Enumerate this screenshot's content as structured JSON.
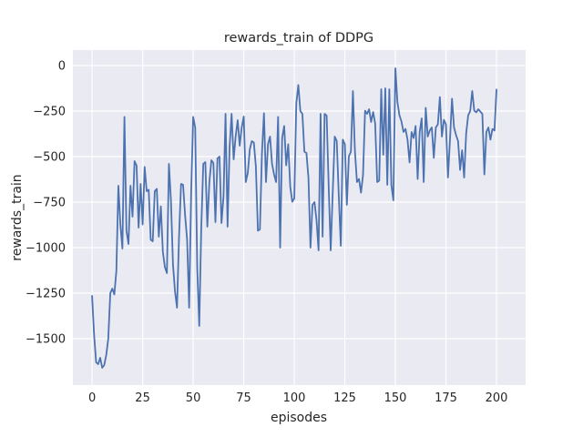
{
  "figure": {
    "title": "rewards_train of DDPG",
    "xlabel": "episodes",
    "ylabel": "rewards_train"
  },
  "style": {
    "figure_bg": "#ffffff",
    "axes_bg": "#eaeaf2",
    "grid_color": "#ffffff",
    "line_color": "#4c72b0",
    "text_color": "#262626"
  },
  "chart_data": {
    "type": "line",
    "title": "rewards_train of DDPG",
    "xlabel": "episodes",
    "ylabel": "rewards_train",
    "grid": true,
    "legend": null,
    "x_start": 0,
    "x_step": 1,
    "x_ticks": [
      0,
      25,
      50,
      75,
      100,
      125,
      150,
      175,
      200
    ],
    "y_ticks": [
      0,
      -250,
      -500,
      -750,
      -1000,
      -1250,
      -1500
    ],
    "xlim": [
      -9.5,
      214.4
    ],
    "ylim": [
      -1755,
      85
    ],
    "series": [
      {
        "name": "rewards_train",
        "color": "#4c72b0",
        "values": [
          -1265,
          -1480,
          -1630,
          -1640,
          -1605,
          -1660,
          -1645,
          -1590,
          -1500,
          -1250,
          -1225,
          -1257,
          -1130,
          -660,
          -875,
          -1005,
          -282,
          -907,
          -980,
          -660,
          -830,
          -525,
          -550,
          -890,
          -650,
          -873,
          -557,
          -690,
          -682,
          -957,
          -965,
          -690,
          -677,
          -940,
          -773,
          -1023,
          -1107,
          -1140,
          -540,
          -740,
          -1090,
          -1240,
          -1330,
          -940,
          -650,
          -655,
          -823,
          -957,
          -1330,
          -700,
          -282,
          -340,
          -1110,
          -1430,
          -890,
          -540,
          -530,
          -885,
          -640,
          -520,
          -535,
          -860,
          -510,
          -500,
          -865,
          -720,
          -265,
          -885,
          -450,
          -265,
          -515,
          -390,
          -300,
          -440,
          -340,
          -280,
          -640,
          -590,
          -460,
          -415,
          -423,
          -555,
          -907,
          -900,
          -482,
          -262,
          -640,
          -432,
          -390,
          -540,
          -598,
          -640,
          -282,
          -1000,
          -398,
          -332,
          -548,
          -432,
          -665,
          -748,
          -730,
          -207,
          -107,
          -250,
          -265,
          -473,
          -480,
          -615,
          -1000,
          -765,
          -750,
          -850,
          -1015,
          -265,
          -940,
          -265,
          -275,
          -660,
          -1015,
          -700,
          -390,
          -415,
          -715,
          -990,
          -407,
          -432,
          -765,
          -498,
          -473,
          -140,
          -473,
          -640,
          -623,
          -698,
          -600,
          -248,
          -265,
          -240,
          -310,
          -255,
          -318,
          -640,
          -632,
          -130,
          -490,
          -125,
          -655,
          -130,
          -655,
          -740,
          -15,
          -200,
          -273,
          -307,
          -365,
          -348,
          -407,
          -532,
          -365,
          -398,
          -332,
          -623,
          -365,
          -290,
          -640,
          -232,
          -390,
          -357,
          -340,
          -507,
          -340,
          -323,
          -173,
          -390,
          -298,
          -323,
          -615,
          -407,
          -182,
          -340,
          -382,
          -415,
          -573,
          -465,
          -615,
          -373,
          -273,
          -250,
          -140,
          -248,
          -257,
          -240,
          -253,
          -265,
          -598,
          -365,
          -340,
          -407,
          -348,
          -357,
          -132
        ]
      }
    ]
  }
}
